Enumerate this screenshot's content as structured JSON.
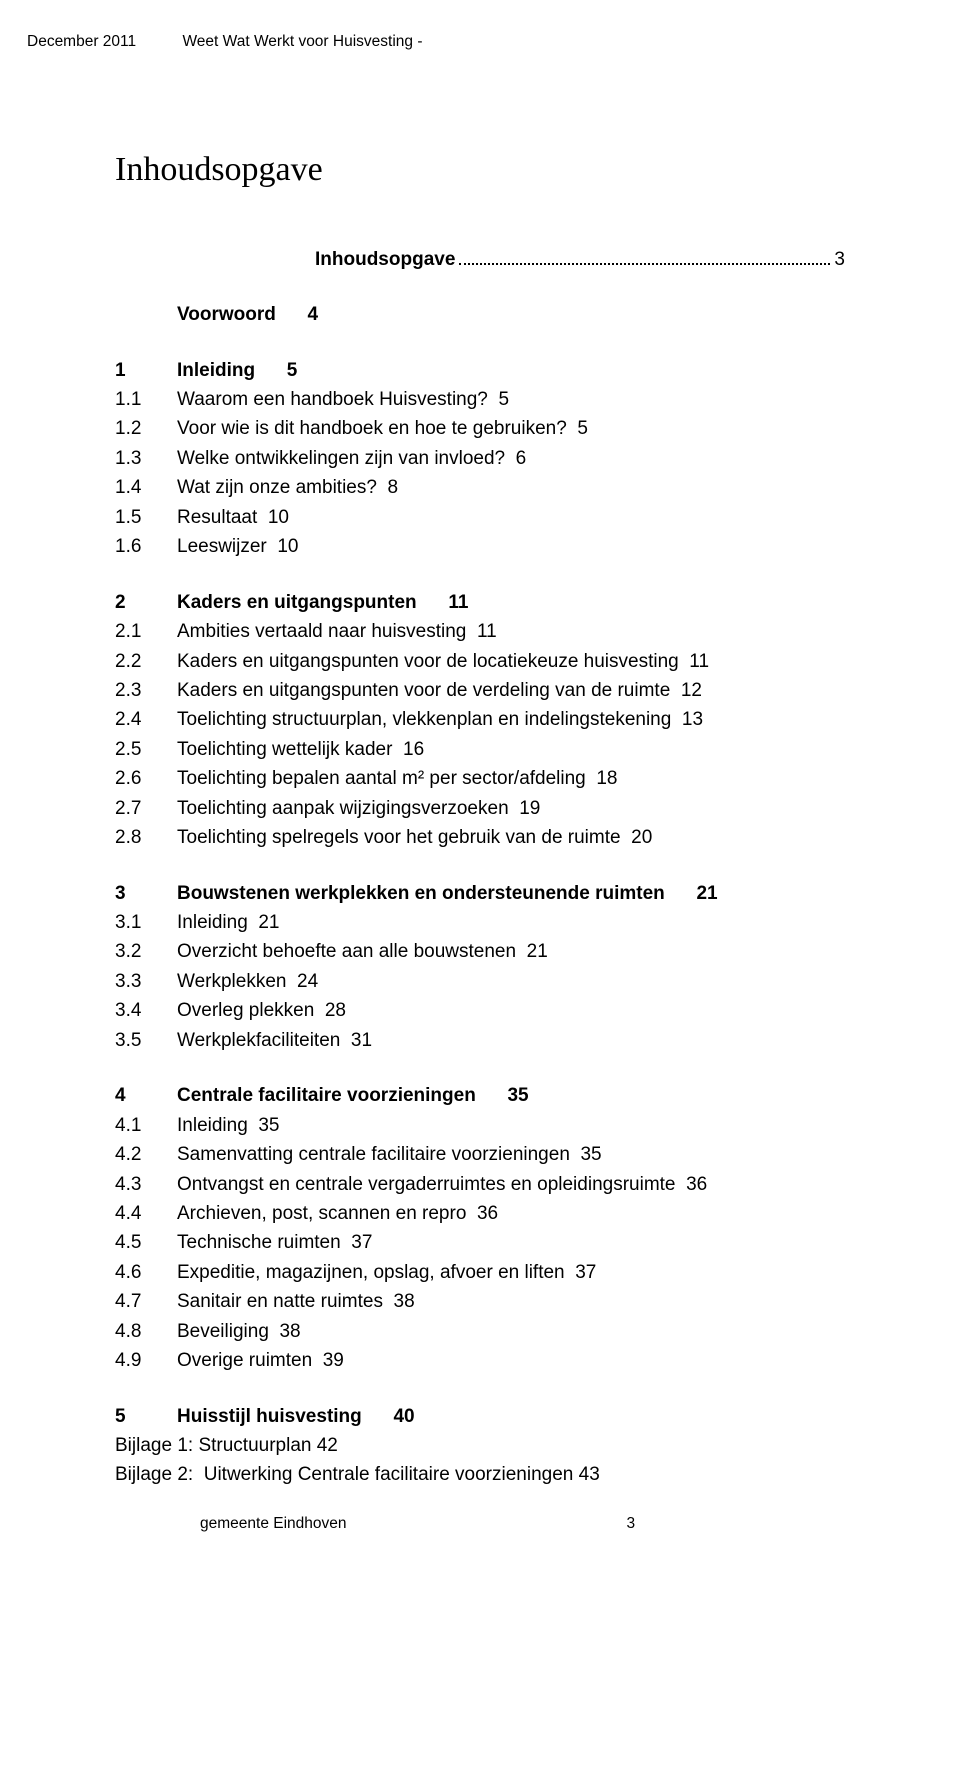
{
  "header": {
    "date": "December 2011",
    "title": "Weet Wat Werkt voor Huisvesting -"
  },
  "doc_title": "Inhoudsopgave",
  "dotted": {
    "label": "Inhoudsopgave",
    "page": "3"
  },
  "blocks": [
    {
      "rows": [
        {
          "num": "",
          "label": "Voorwoord",
          "page": "4",
          "bold": true
        }
      ]
    },
    {
      "rows": [
        {
          "num": "1",
          "label": "Inleiding",
          "page": "5",
          "bold": true
        },
        {
          "num": "1.1",
          "label": "Waarom een handboek Huisvesting?",
          "page": "5",
          "bold": false
        },
        {
          "num": "1.2",
          "label": "Voor wie is dit handboek en hoe te gebruiken?",
          "page": "5",
          "bold": false
        },
        {
          "num": "1.3",
          "label": "Welke ontwikkelingen zijn van invloed?",
          "page": "6",
          "bold": false
        },
        {
          "num": "1.4",
          "label": "Wat zijn onze ambities?",
          "page": "8",
          "bold": false
        },
        {
          "num": "1.5",
          "label": "Resultaat",
          "page": "10",
          "bold": false
        },
        {
          "num": "1.6",
          "label": "Leeswijzer",
          "page": "10",
          "bold": false
        }
      ]
    },
    {
      "rows": [
        {
          "num": "2",
          "label": "Kaders en uitgangspunten",
          "page": "11",
          "bold": true
        },
        {
          "num": "2.1",
          "label": "Ambities vertaald naar huisvesting",
          "page": "11",
          "bold": false
        },
        {
          "num": "2.2",
          "label": "Kaders en uitgangspunten voor de locatiekeuze huisvesting",
          "page": "11",
          "bold": false
        },
        {
          "num": "2.3",
          "label": "Kaders en uitgangspunten voor de verdeling van de ruimte",
          "page": "12",
          "bold": false
        },
        {
          "num": "2.4",
          "label": "Toelichting structuurplan, vlekkenplan en indelingstekening",
          "page": "13",
          "bold": false
        },
        {
          "num": "2.5",
          "label": "Toelichting wettelijk kader",
          "page": "16",
          "bold": false
        },
        {
          "num": "2.6",
          "label": "Toelichting bepalen aantal m² per sector/afdeling",
          "page": "18",
          "bold": false
        },
        {
          "num": "2.7",
          "label": "Toelichting aanpak wijzigingsverzoeken",
          "page": "19",
          "bold": false
        },
        {
          "num": "2.8",
          "label": "Toelichting spelregels voor het gebruik van de ruimte",
          "page": "20",
          "bold": false
        }
      ]
    },
    {
      "rows": [
        {
          "num": "3",
          "label": "Bouwstenen werkplekken en ondersteunende ruimten",
          "page": "21",
          "bold": true
        },
        {
          "num": "3.1",
          "label": "Inleiding",
          "page": "21",
          "bold": false
        },
        {
          "num": "3.2",
          "label": "Overzicht behoefte aan alle bouwstenen",
          "page": "21",
          "bold": false
        },
        {
          "num": "3.3",
          "label": "Werkplekken",
          "page": "24",
          "bold": false
        },
        {
          "num": "3.4",
          "label": "Overleg plekken",
          "page": "28",
          "bold": false
        },
        {
          "num": "3.5",
          "label": "Werkplekfaciliteiten",
          "page": "31",
          "bold": false
        }
      ]
    },
    {
      "rows": [
        {
          "num": "4",
          "label": "Centrale facilitaire voorzieningen",
          "page": "35",
          "bold": true
        },
        {
          "num": "4.1",
          "label": "Inleiding",
          "page": "35",
          "bold": false
        },
        {
          "num": "4.2",
          "label": "Samenvatting centrale facilitaire voorzieningen",
          "page": "35",
          "bold": false
        },
        {
          "num": "4.3",
          "label": "Ontvangst en centrale vergaderruimtes en opleidingsruimte",
          "page": "36",
          "bold": false
        },
        {
          "num": "4.4",
          "label": "Archieven, post, scannen en repro",
          "page": "36",
          "bold": false
        },
        {
          "num": "4.5",
          "label": "Technische ruimten",
          "page": "37",
          "bold": false
        },
        {
          "num": "4.6",
          "label": "Expeditie, magazijnen, opslag, afvoer en liften",
          "page": "37",
          "bold": false
        },
        {
          "num": "4.7",
          "label": "Sanitair en natte ruimtes",
          "page": "38",
          "bold": false
        },
        {
          "num": "4.8",
          "label": "Beveiliging",
          "page": "38",
          "bold": false
        },
        {
          "num": "4.9",
          "label": "Overige ruimten",
          "page": "39",
          "bold": false
        }
      ]
    },
    {
      "rows": [
        {
          "num": "5",
          "label": "Huisstijl huisvesting",
          "page": "40",
          "bold": true
        },
        {
          "num": "",
          "label": "Bijlage 1: Structuurplan",
          "page": "42",
          "bold": false,
          "nonum": true
        },
        {
          "num": "",
          "label": "Bijlage 2:  Uitwerking Centrale facilitaire voorzieningen",
          "page": "43",
          "bold": false,
          "nonum": true
        }
      ]
    }
  ],
  "footer": {
    "org": "gemeente Eindhoven",
    "pagenum": "3"
  }
}
